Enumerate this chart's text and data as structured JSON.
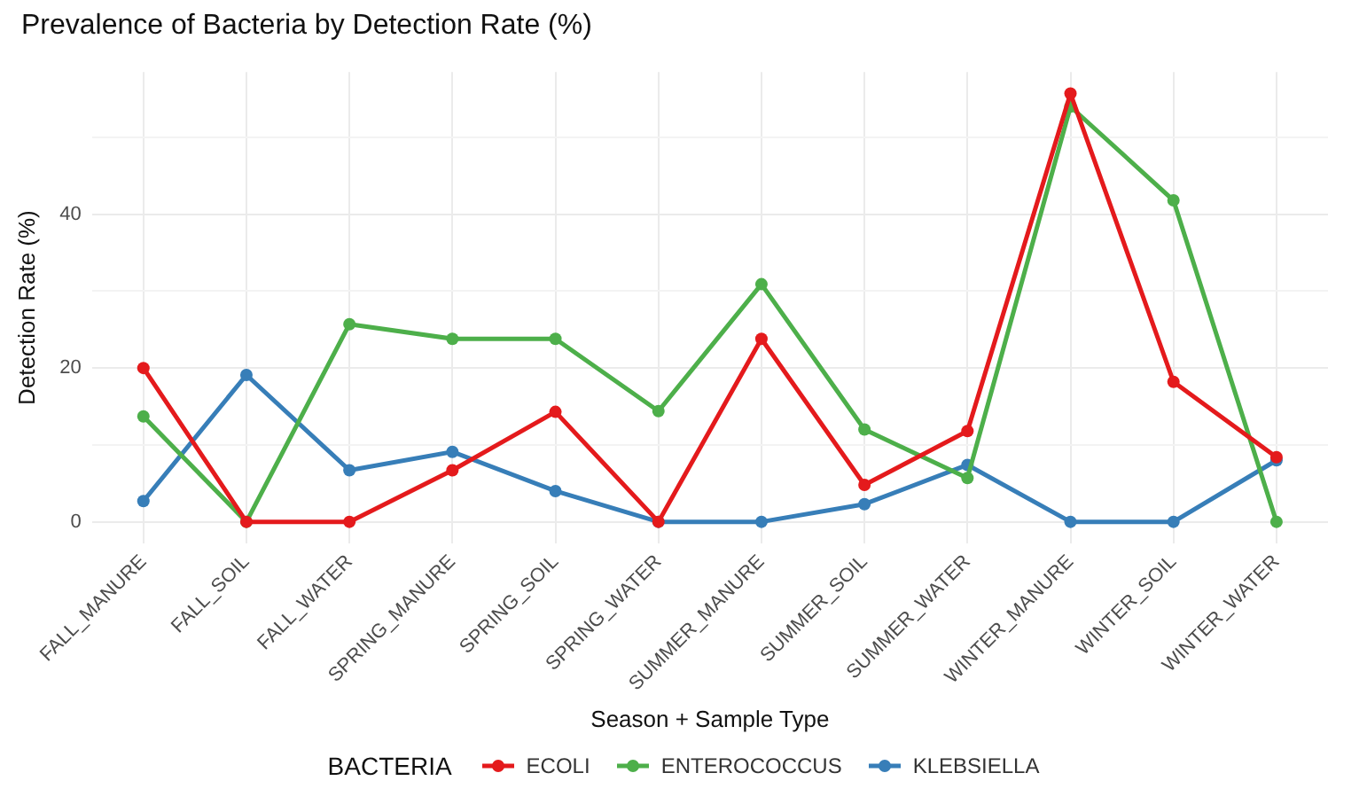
{
  "chart_data": {
    "type": "line",
    "title": "Prevalence of Bacteria by Detection Rate (%)",
    "xlabel": "Season + Sample Type",
    "ylabel": "Detection Rate (%)",
    "legend_title": "BACTERIA",
    "categories": [
      "FALL_MANURE",
      "FALL_SOIL",
      "FALL_WATER",
      "SPRING_MANURE",
      "SPRING_SOIL",
      "SPRING_WATER",
      "SUMMER_MANURE",
      "SUMMER_SOIL",
      "SUMMER_WATER",
      "WINTER_MANURE",
      "WINTER_SOIL",
      "WINTER_WATER"
    ],
    "series": [
      {
        "name": "ECOLI",
        "color": "#e41a1c",
        "values": [
          20,
          0,
          0,
          6.7,
          14.3,
          0,
          23.8,
          4.8,
          11.8,
          55.7,
          18.2,
          8.4
        ]
      },
      {
        "name": "ENTEROCOCCUS",
        "color": "#4daf4a",
        "values": [
          13.7,
          0,
          25.7,
          23.8,
          23.8,
          14.4,
          30.9,
          12,
          5.7,
          54,
          41.8,
          0
        ]
      },
      {
        "name": "KLEBSIELLA",
        "color": "#377eb8",
        "values": [
          2.7,
          19.1,
          6.7,
          9.1,
          4,
          0,
          0,
          2.3,
          7.4,
          0,
          0,
          8
        ]
      }
    ],
    "ylim": [
      -2.8,
      58.5
    ],
    "yticks": [
      0,
      {
        "value": 10,
        "label": null
      },
      20,
      {
        "value": 30,
        "label": null
      },
      40,
      {
        "value": 50,
        "label": null
      }
    ],
    "grid": true,
    "legend": "bottom",
    "marker": "circle",
    "line_style": "solid"
  }
}
